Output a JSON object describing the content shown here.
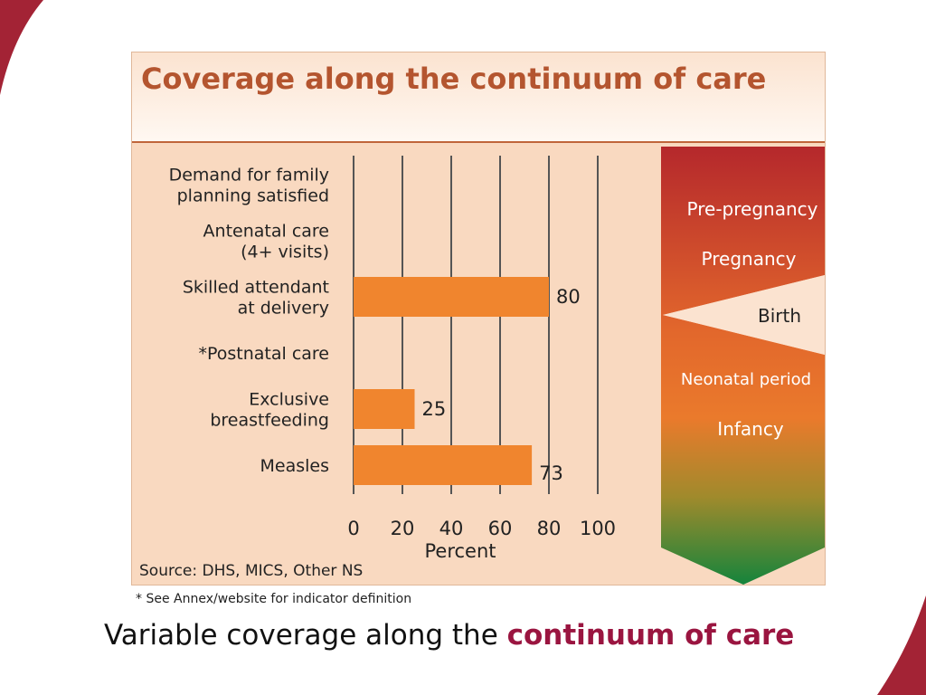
{
  "colors": {
    "bar": "#f0852e",
    "panel": "#f9d9c0",
    "title": "#b4552f",
    "grid": "#555555",
    "accent": "#9a1540",
    "corner": "#a32335",
    "stage_top": "#b5282c",
    "stage_mid": "#ea7a2c",
    "stage_bottom": "#15843c"
  },
  "chart_data": {
    "type": "bar",
    "orientation": "horizontal",
    "title": "Coverage along the continuum of care",
    "categories": [
      [
        "Demand for family",
        "planning satisfied"
      ],
      [
        "Antenatal care",
        "(4+ visits)"
      ],
      [
        "Skilled attendant",
        "at delivery"
      ],
      [
        "*Postnatal care"
      ],
      [
        "Exclusive",
        "breastfeeding"
      ],
      [
        "Measles"
      ]
    ],
    "values": [
      null,
      null,
      80,
      null,
      25,
      73
    ],
    "value_labels": [
      "",
      "",
      "80",
      "",
      "25",
      "73"
    ],
    "xlabel": "Percent",
    "xlim": [
      0,
      100
    ],
    "xticks": [
      "0",
      "20",
      "40",
      "60",
      "80",
      "100"
    ],
    "grid": true
  },
  "stages": [
    "Pre-pregnancy",
    "Pregnancy",
    "Birth",
    "Neonatal period",
    "Infancy"
  ],
  "source": "Source: DHS, MICS, Other NS",
  "footnote": "* See Annex/website for indicator definition",
  "caption": {
    "prefix": "Variable coverage along the ",
    "emphasis": "continuum of care"
  }
}
